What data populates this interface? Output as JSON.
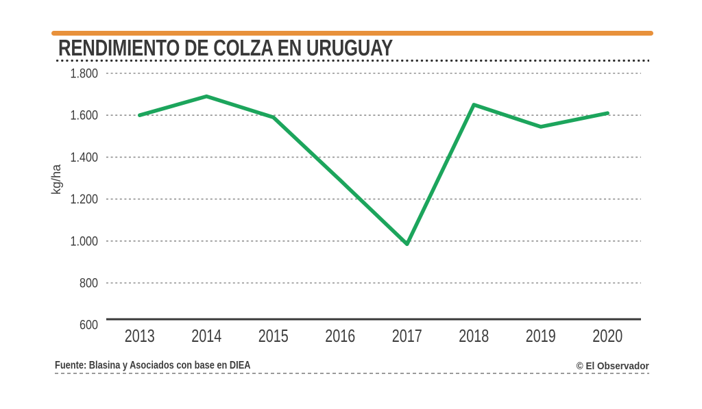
{
  "chart_data": {
    "type": "line",
    "title": "RENDIMIENTO DE COLZA EN URUGUAY",
    "categories": [
      "2013",
      "2014",
      "2015",
      "2016",
      "2017",
      "2018",
      "2019",
      "2020"
    ],
    "values": [
      1600,
      1690,
      1590,
      1290,
      985,
      1650,
      1545,
      1610
    ],
    "xlabel": "",
    "ylabel": "kg/ha",
    "ylim": [
      600,
      1800
    ],
    "yticks": [
      600,
      800,
      1000,
      1200,
      1400,
      1600,
      1800
    ],
    "ytick_labels": [
      "600",
      "800",
      "1.000",
      "1.200",
      "1.400",
      "1.600",
      "1.800"
    ],
    "grid": "horizontal-dashed",
    "legend": "none",
    "line_color": "#1ca55c"
  },
  "footer": {
    "source": "Fuente: Blasina y Asociados con base en DIEA",
    "credit": "© El Observador"
  },
  "colors": {
    "accent": "#e8913b",
    "title_text": "#383838",
    "label": "#3c3c3c",
    "grid": "#8f8f8f",
    "axis": "#3a3a3a",
    "rule_dots": "#2f2f2f",
    "footer_rule": "#9a9a9a"
  }
}
